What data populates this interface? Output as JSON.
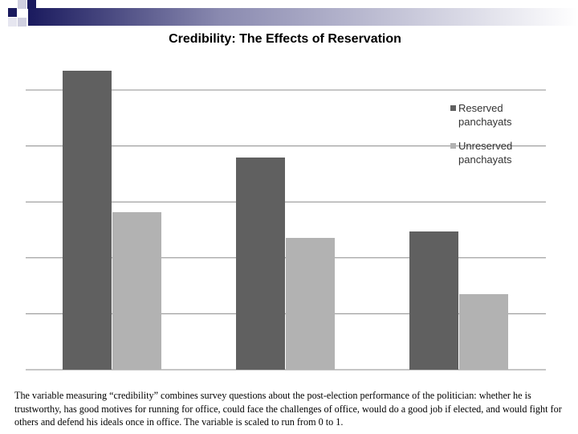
{
  "chart_data": {
    "type": "bar",
    "title": "Credibility: The Effects of Reservation",
    "categories": [
      "",
      "",
      ""
    ],
    "series": [
      {
        "name": "Reserved panchayats",
        "color": "#606060",
        "values": [
          0.93,
          0.66,
          0.43
        ]
      },
      {
        "name": "Unreserved panchayats",
        "color": "#b2b2b2",
        "values": [
          0.49,
          0.41,
          0.235
        ]
      }
    ],
    "ylim": [
      0,
      1.0
    ],
    "gridlines": true,
    "legend_position": "right"
  },
  "caption": "The variable measuring “credibility” combines survey questions about the post-election performance of the politician: whether he is trustworthy, has good motives for running for office, could face the challenges of office, would do a good job if elected, and would fight for others and defend his ideals once in office.  The variable is scaled to run from 0 to 1.",
  "colors": {
    "deco_dark": "#1a1a5e",
    "deco_light": "#b8b8d0",
    "grid": "#8c8c8c"
  }
}
